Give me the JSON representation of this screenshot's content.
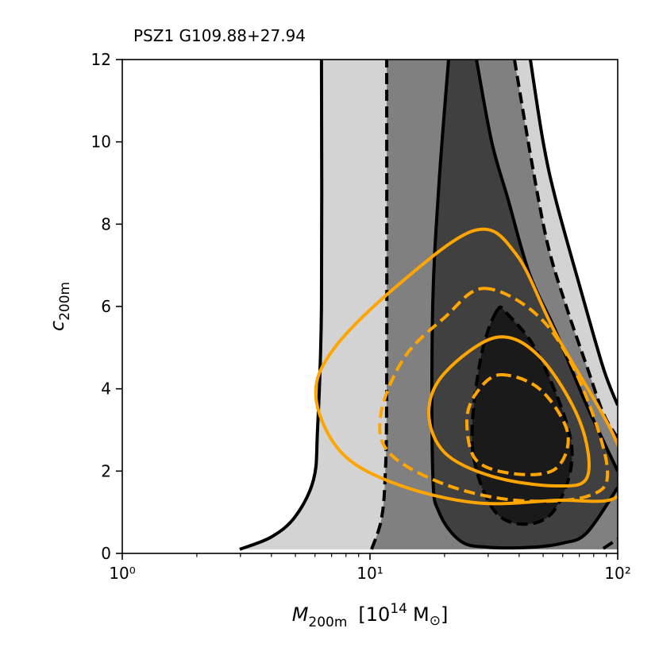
{
  "chart_data": {
    "type": "contour",
    "title": "PSZ1 G109.88+27.94",
    "xlabel": {
      "symbol": "M",
      "subscript": "200m",
      "unit_open": "[10",
      "unit_exponent": "14",
      "unit_symbol": "M",
      "unit_subscript": "⊙",
      "unit_close": "]"
    },
    "ylabel": {
      "symbol": "c",
      "subscript": "200m"
    },
    "xscale": "log",
    "xlim": [
      1,
      100
    ],
    "ylim": [
      0,
      12
    ],
    "xticks": [
      {
        "value": 1,
        "label": "10⁰"
      },
      {
        "value": 10,
        "label": "10¹"
      },
      {
        "value": 100,
        "label": "10²"
      }
    ],
    "xminorticks": [
      2,
      3,
      4,
      5,
      6,
      7,
      8,
      9,
      20,
      30,
      40,
      50,
      60,
      70,
      80,
      90
    ],
    "yticks": [
      0,
      2,
      4,
      6,
      8,
      10,
      12
    ],
    "series": [
      {
        "color": "#000000",
        "linestyle": "solid",
        "fill": "#d3d3d3",
        "fill_region": "right",
        "x": [
          2.98,
          4.0,
          5.0,
          5.92,
          6.14,
          6.37,
          6.37
        ],
        "values": [
          0.1,
          0.4,
          0.9,
          1.8,
          3.0,
          6.0,
          12
        ]
      },
      {
        "color": "#000000",
        "linestyle": "dashed",
        "fill": "#808080",
        "fill_region": "right",
        "x": [
          10.15,
          11.09,
          11.5,
          11.68,
          11.68
        ],
        "values": [
          0.1,
          0.8,
          1.8,
          4.0,
          12
        ]
      },
      {
        "color": "#000000",
        "linestyle": "solid",
        "fill": "#404040",
        "fill_region": "right",
        "x": [
          20.76,
          19.0,
          17.91,
          17.91,
          19.0,
          23.2,
          30,
          45,
          60,
          75,
          100
        ],
        "values": [
          12,
          9,
          6,
          2,
          1,
          0.3,
          0.15,
          0.15,
          0.25,
          0.5,
          1.6
        ]
      },
      {
        "color": "#000000",
        "linestyle": "solid",
        "fill": "#808080",
        "fill_region": "right",
        "x": [
          26.9,
          31,
          36.1,
          44,
          56.2,
          75,
          100
        ],
        "values": [
          12,
          10,
          8.6,
          6.8,
          5.4,
          3.6,
          2.0
        ]
      },
      {
        "color": "#000000",
        "linestyle": "dashed",
        "fill": "#d3d3d3",
        "fill_region": "right",
        "x": [
          38.3,
          45,
          52.2,
          62,
          75.5,
          87.5,
          100
        ],
        "values": [
          12,
          9.5,
          7.5,
          6.0,
          4.5,
          3.4,
          2.8
        ]
      },
      {
        "color": "#000000",
        "linestyle": "solid",
        "fill": "#ffffff",
        "fill_region": "right",
        "x": [
          44.4,
          50,
          56.2,
          70.2,
          87.5,
          100
        ],
        "values": [
          12,
          10,
          8.6,
          6.5,
          4.5,
          3.6
        ]
      },
      {
        "color": "#000000",
        "linestyle": "dashed",
        "fill": "#1a1a1a",
        "fill_region": "inside",
        "x": [
          32.4,
          27.9,
          25.9,
          31.2,
          41.9,
          56.2,
          65.2,
          48.5,
          36.1,
          32.4
        ],
        "values": [
          5.88,
          4.7,
          2.6,
          1.1,
          0.71,
          1.1,
          2.6,
          4.77,
          5.8,
          5.88
        ]
      },
      {
        "color": "#000000",
        "linestyle": "dashed",
        "x": [
          87.5,
          100
        ],
        "values": [
          0.12,
          0.35
        ]
      },
      {
        "color": "#ffa500",
        "linestyle": "solid",
        "x": [
          26.5,
          38.9,
          56.2,
          100,
          100,
          56.2,
          26.9,
          12.85,
          7.67,
          6.05,
          7.12,
          12.85,
          26.5
        ],
        "values": [
          7.85,
          7.27,
          5.34,
          2.64,
          1.39,
          1.29,
          1.23,
          1.68,
          2.45,
          3.8,
          4.96,
          6.5,
          7.85
        ]
      },
      {
        "color": "#ffa500",
        "linestyle": "dashed",
        "x": [
          28.9,
          48.5,
          70.2,
          90.8,
          75.5,
          38.9,
          20.0,
          11.94,
          11.09,
          13.8,
          20.0,
          28.9
        ],
        "values": [
          6.44,
          5.73,
          4.19,
          2.06,
          1.39,
          1.29,
          1.68,
          2.45,
          3.42,
          4.77,
          5.73,
          6.44
        ]
      },
      {
        "color": "#ffa500",
        "linestyle": "solid",
        "x": [
          32.4,
          48.5,
          70.2,
          75.5,
          56.2,
          31.2,
          20.0,
          17.27,
          20.0,
          32.4
        ],
        "values": [
          5.25,
          4.77,
          3.22,
          1.87,
          1.64,
          1.87,
          2.45,
          3.42,
          4.38,
          5.25
        ]
      },
      {
        "color": "#ffa500",
        "linestyle": "dashed",
        "x": [
          33.5,
          48.5,
          62.8,
          56.2,
          38.9,
          26.9,
          24.6,
          26.9,
          33.5
        ],
        "values": [
          4.34,
          3.99,
          2.93,
          2.06,
          1.93,
          2.26,
          3.22,
          3.9,
          4.34
        ]
      }
    ]
  }
}
